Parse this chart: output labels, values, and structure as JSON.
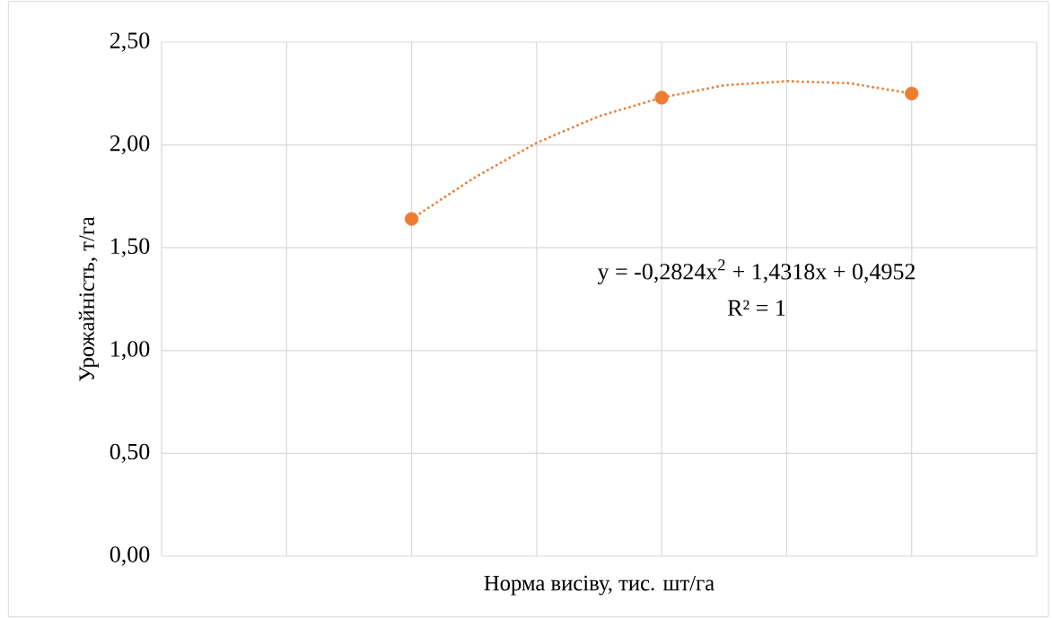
{
  "chart_data": {
    "type": "line",
    "xlabel": "Норма висіву, тис. шт/га",
    "ylabel": "Урожайність, т/га",
    "categories": [
      null,
      null,
      null,
      null,
      null,
      null,
      null,
      null,
      null
    ],
    "ylim": [
      0,
      2.5
    ],
    "yticks": [
      {
        "value": 0,
        "label": "0,00"
      },
      {
        "value": 0.5,
        "label": "0,50"
      },
      {
        "value": 1,
        "label": "1,00"
      },
      {
        "value": 1.5,
        "label": "1,50"
      },
      {
        "value": 2,
        "label": "2,00"
      },
      {
        "value": 2.5,
        "label": "2,50"
      }
    ],
    "tick_labels": "y",
    "grid": true,
    "series": [
      {
        "color": "#ed7d31",
        "marker": "none",
        "line_style": "dotted",
        "values": [
          1.64,
          1.84,
          2.01,
          2.14,
          2.23,
          2.29,
          2.31,
          2.3,
          2.25
        ]
      },
      {
        "type": "scatter",
        "color": "#ed7d31",
        "marker": "circle",
        "values": [
          1.64,
          null,
          null,
          null,
          2.23,
          null,
          null,
          null,
          2.25
        ]
      }
    ],
    "annotations": [
      "y = -0,2824x$^{2}$ + 1,4318x + 0,4952",
      "R² = 1"
    ]
  }
}
